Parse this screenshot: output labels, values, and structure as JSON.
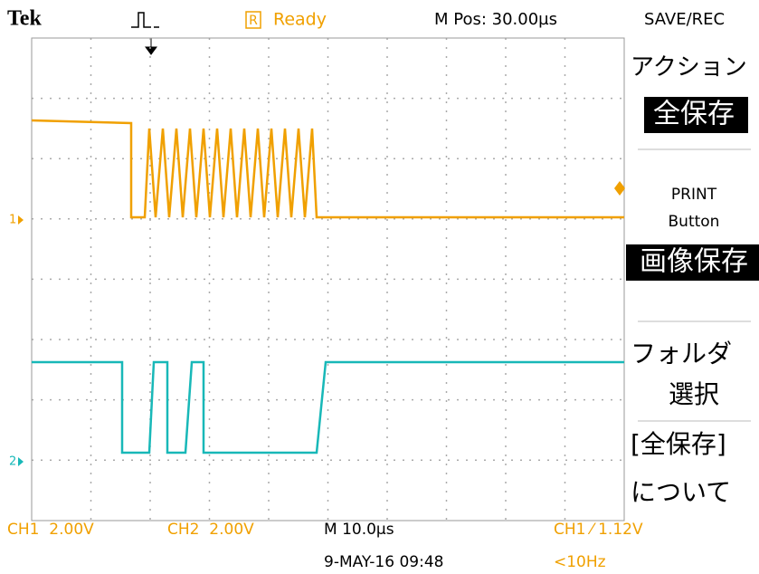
{
  "header": {
    "brand": "Tek",
    "status_icon": "R",
    "status": "Ready",
    "position": "M Pos: 30.00µs",
    "menu_title": "SAVE/REC"
  },
  "menu": {
    "items": [
      {
        "label": "アクション"
      },
      {
        "label": "全保存",
        "highlighted": true
      },
      {
        "label": "PRINT"
      },
      {
        "label": "Button"
      },
      {
        "label": "画像保存",
        "highlighted": true
      },
      {
        "label": "フォルダ"
      },
      {
        "label": "選択"
      },
      {
        "label": "[全保存]"
      },
      {
        "label": "について"
      }
    ]
  },
  "channels": {
    "ch1_marker": "1",
    "ch2_marker": "2"
  },
  "footer": {
    "ch1_scale": "CH1  2.00V",
    "ch2_scale": "CH2  2.00V",
    "timebase": "M 10.0µs",
    "trigger": "CH1 ⁄ 1.12V",
    "date": "9-MAY-16 09:48",
    "frequency": "<10Hz"
  }
}
